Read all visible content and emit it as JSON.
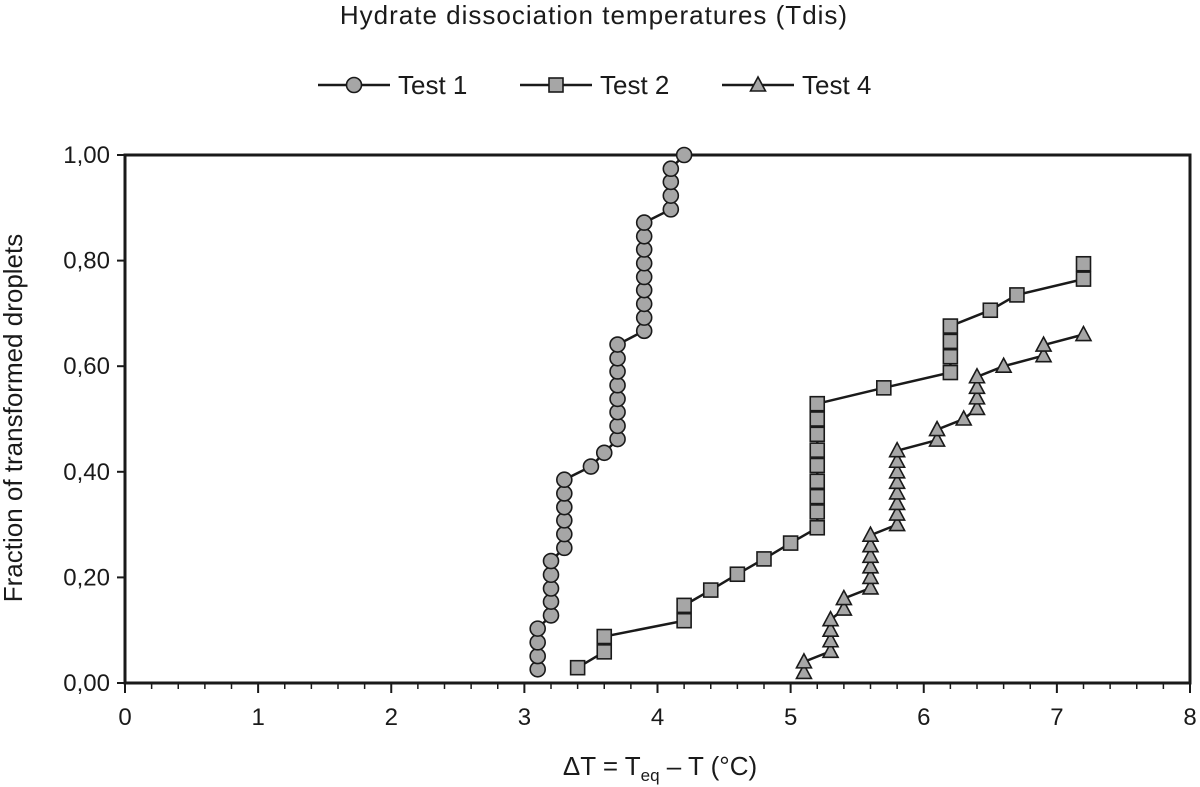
{
  "chart_data": {
    "type": "scatter",
    "title": "Hydrate dissociation temperatures (Tdis)",
    "xlabel": {
      "main": "ΔT = T",
      "sub": "eq",
      "rest": " – T (°C)"
    },
    "ylabel": "Fraction of transformed droplets",
    "xlim": [
      0,
      8
    ],
    "ylim": [
      0,
      1
    ],
    "x_ticks": [
      "0",
      "1",
      "2",
      "3",
      "4",
      "5",
      "6",
      "7",
      "8"
    ],
    "y_ticks": [
      "0,00",
      "0,20",
      "0,40",
      "0,60",
      "0,80",
      "1,00"
    ],
    "grid": false,
    "legend_position": "top",
    "series": [
      {
        "name": "Test 1",
        "marker": "circle",
        "color": "#a6a6a6",
        "points": [
          [
            3.1,
            0.026
          ],
          [
            3.1,
            0.051
          ],
          [
            3.1,
            0.077
          ],
          [
            3.1,
            0.103
          ],
          [
            3.2,
            0.128
          ],
          [
            3.2,
            0.154
          ],
          [
            3.2,
            0.179
          ],
          [
            3.2,
            0.205
          ],
          [
            3.2,
            0.231
          ],
          [
            3.3,
            0.256
          ],
          [
            3.3,
            0.282
          ],
          [
            3.3,
            0.308
          ],
          [
            3.3,
            0.333
          ],
          [
            3.3,
            0.359
          ],
          [
            3.3,
            0.385
          ],
          [
            3.5,
            0.41
          ],
          [
            3.6,
            0.436
          ],
          [
            3.7,
            0.462
          ],
          [
            3.7,
            0.487
          ],
          [
            3.7,
            0.513
          ],
          [
            3.7,
            0.538
          ],
          [
            3.7,
            0.564
          ],
          [
            3.7,
            0.59
          ],
          [
            3.7,
            0.615
          ],
          [
            3.7,
            0.641
          ],
          [
            3.9,
            0.667
          ],
          [
            3.9,
            0.692
          ],
          [
            3.9,
            0.718
          ],
          [
            3.9,
            0.744
          ],
          [
            3.9,
            0.769
          ],
          [
            3.9,
            0.795
          ],
          [
            3.9,
            0.821
          ],
          [
            3.9,
            0.846
          ],
          [
            3.9,
            0.872
          ],
          [
            4.1,
            0.897
          ],
          [
            4.1,
            0.923
          ],
          [
            4.1,
            0.949
          ],
          [
            4.1,
            0.974
          ],
          [
            4.2,
            1.0
          ]
        ]
      },
      {
        "name": "Test 2",
        "marker": "square",
        "color": "#a6a6a6",
        "points": [
          [
            3.4,
            0.029
          ],
          [
            3.6,
            0.059
          ],
          [
            3.6,
            0.088
          ],
          [
            4.2,
            0.118
          ],
          [
            4.2,
            0.147
          ],
          [
            4.4,
            0.176
          ],
          [
            4.6,
            0.206
          ],
          [
            4.8,
            0.235
          ],
          [
            5.0,
            0.265
          ],
          [
            5.2,
            0.294
          ],
          [
            5.2,
            0.324
          ],
          [
            5.2,
            0.353
          ],
          [
            5.2,
            0.382
          ],
          [
            5.2,
            0.412
          ],
          [
            5.2,
            0.441
          ],
          [
            5.2,
            0.471
          ],
          [
            5.2,
            0.5
          ],
          [
            5.2,
            0.529
          ],
          [
            5.7,
            0.559
          ],
          [
            6.2,
            0.588
          ],
          [
            6.2,
            0.618
          ],
          [
            6.2,
            0.647
          ],
          [
            6.2,
            0.676
          ],
          [
            6.5,
            0.706
          ],
          [
            6.7,
            0.735
          ],
          [
            7.2,
            0.765
          ],
          [
            7.2,
            0.794
          ]
        ]
      },
      {
        "name": "Test 4",
        "marker": "triangle",
        "color": "#a6a6a6",
        "points": [
          [
            5.1,
            0.02
          ],
          [
            5.1,
            0.04
          ],
          [
            5.3,
            0.06
          ],
          [
            5.3,
            0.08
          ],
          [
            5.3,
            0.1
          ],
          [
            5.3,
            0.12
          ],
          [
            5.4,
            0.14
          ],
          [
            5.4,
            0.16
          ],
          [
            5.6,
            0.18
          ],
          [
            5.6,
            0.2
          ],
          [
            5.6,
            0.22
          ],
          [
            5.6,
            0.24
          ],
          [
            5.6,
            0.26
          ],
          [
            5.6,
            0.28
          ],
          [
            5.8,
            0.3
          ],
          [
            5.8,
            0.32
          ],
          [
            5.8,
            0.34
          ],
          [
            5.8,
            0.36
          ],
          [
            5.8,
            0.38
          ],
          [
            5.8,
            0.4
          ],
          [
            5.8,
            0.42
          ],
          [
            5.8,
            0.44
          ],
          [
            6.1,
            0.46
          ],
          [
            6.1,
            0.48
          ],
          [
            6.3,
            0.5
          ],
          [
            6.4,
            0.52
          ],
          [
            6.4,
            0.54
          ],
          [
            6.4,
            0.56
          ],
          [
            6.4,
            0.58
          ],
          [
            6.6,
            0.6
          ],
          [
            6.9,
            0.62
          ],
          [
            6.9,
            0.64
          ],
          [
            7.2,
            0.66
          ]
        ]
      }
    ]
  }
}
